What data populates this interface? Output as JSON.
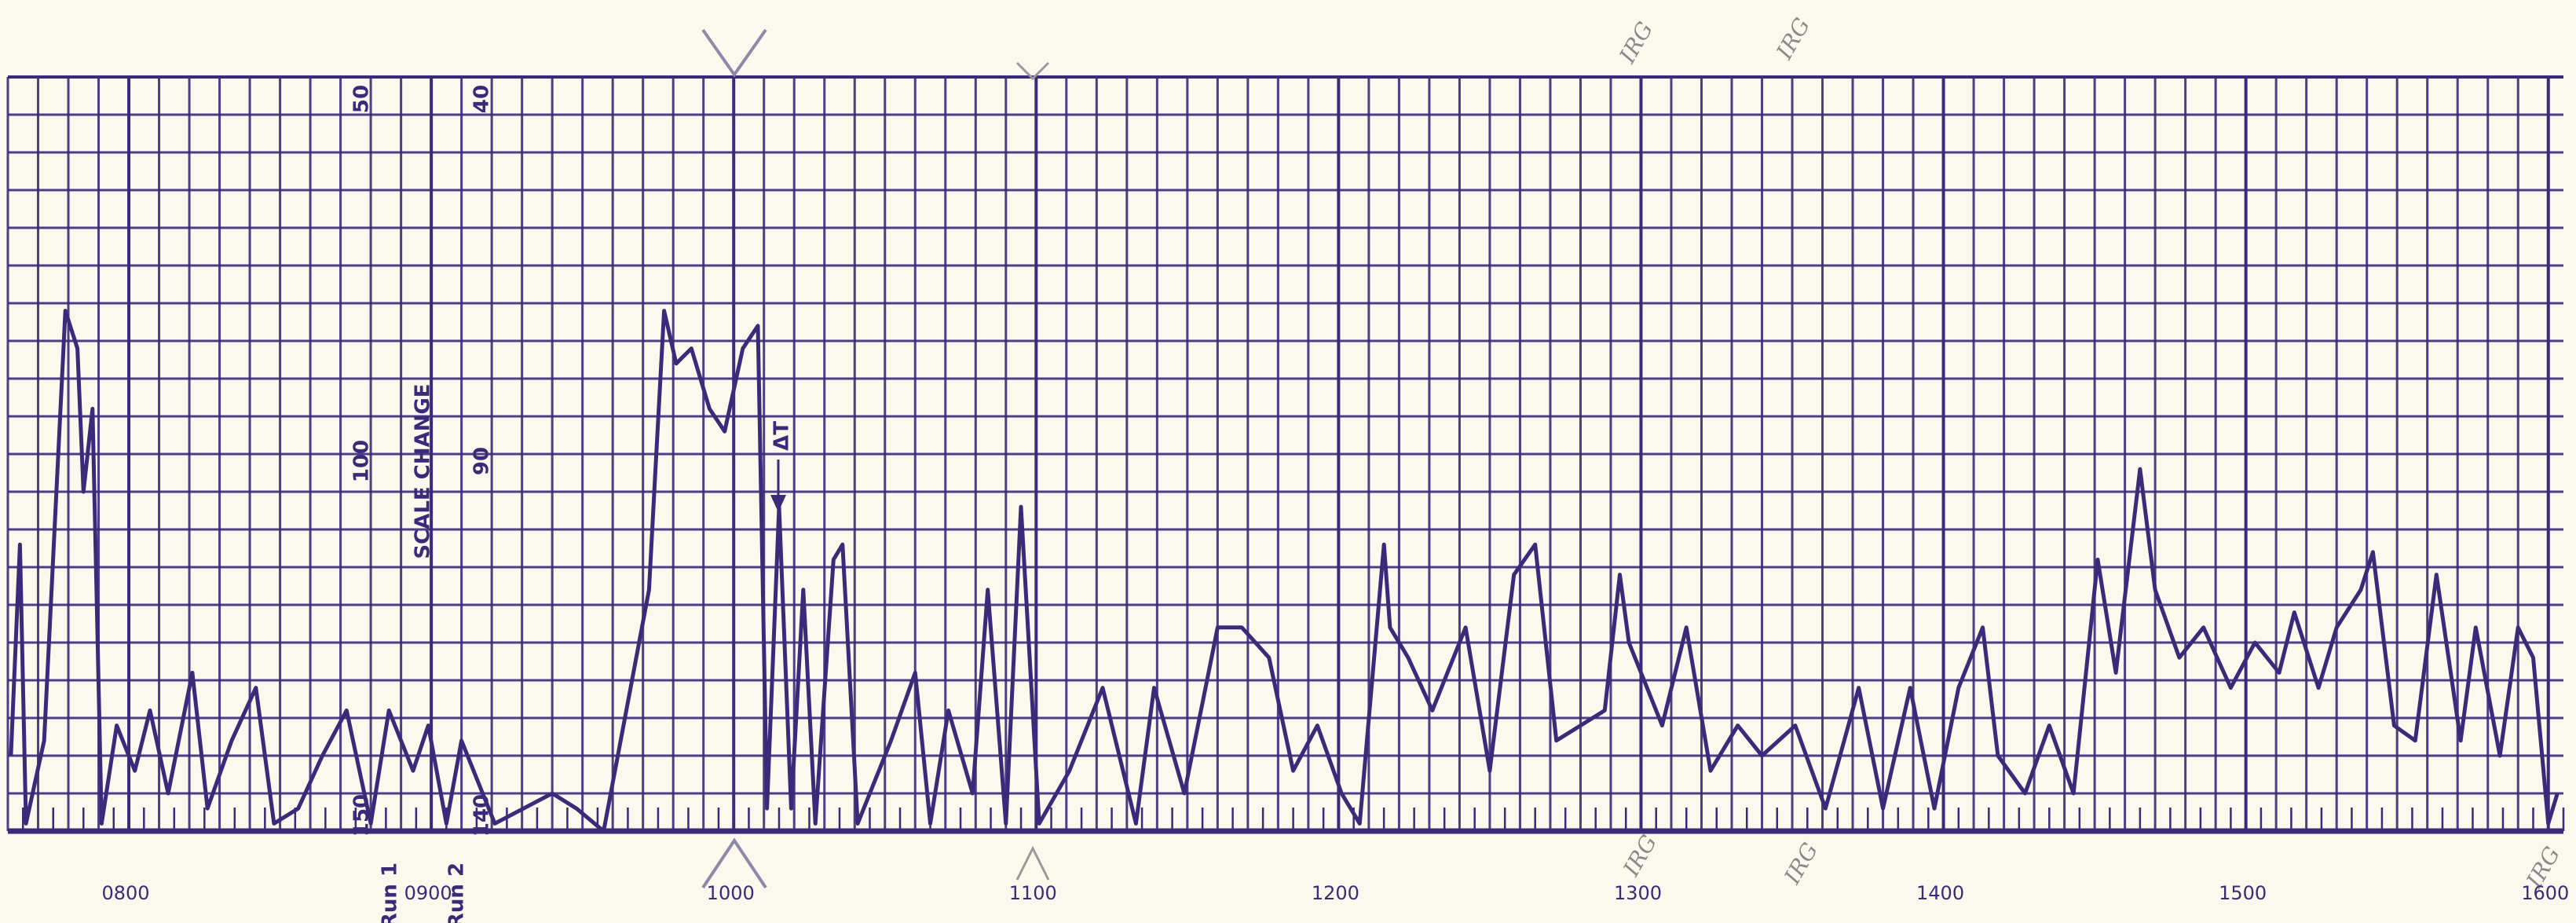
{
  "chart_data": {
    "type": "line",
    "color": "#3b2a7a",
    "grid": true,
    "xlim": [
      7.6,
      16.05
    ],
    "ylim": [
      0,
      100
    ],
    "xticks": [
      {
        "value": 8,
        "label": "0800"
      },
      {
        "value": 9,
        "label": "0900"
      },
      {
        "value": 10,
        "label": "1000"
      },
      {
        "value": 11,
        "label": "1100"
      },
      {
        "value": 12,
        "label": "1200"
      },
      {
        "value": 13,
        "label": "1300"
      },
      {
        "value": 14,
        "label": "1400"
      },
      {
        "value": 15,
        "label": "1500"
      },
      {
        "value": 16,
        "label": "1600"
      }
    ],
    "annotations": [
      "50",
      "40",
      "100",
      "90",
      "150",
      "140",
      "SCALE CHANGE",
      "Run 1",
      "Run 2",
      "ΔT",
      "IRG",
      "IRG",
      "IRG",
      "IRG",
      "IRG"
    ],
    "x": [
      7.61,
      7.64,
      7.66,
      7.72,
      7.79,
      7.83,
      7.85,
      7.88,
      7.91,
      7.96,
      8.02,
      8.07,
      8.13,
      8.21,
      8.26,
      8.34,
      8.42,
      8.48,
      8.56,
      8.64,
      8.72,
      8.8,
      8.86,
      8.94,
      8.99,
      9.05,
      9.1,
      9.21,
      9.4,
      9.48,
      9.57,
      9.72,
      9.74,
      9.77,
      9.81,
      9.86,
      9.92,
      9.97,
      10.03,
      10.08,
      10.11,
      10.15,
      10.19,
      10.23,
      10.27,
      10.33,
      10.36,
      10.41,
      10.52,
      10.6,
      10.65,
      10.71,
      10.79,
      10.84,
      10.9,
      10.95,
      11.01,
      11.11,
      11.22,
      11.33,
      11.39,
      11.49,
      11.6,
      11.68,
      11.77,
      11.85,
      11.93,
      12.01,
      12.07,
      12.15,
      12.17,
      12.23,
      12.31,
      12.42,
      12.5,
      12.58,
      12.65,
      12.72,
      12.8,
      12.88,
      12.93,
      12.96,
      13.02,
      13.07,
      13.15,
      13.23,
      13.32,
      13.4,
      13.51,
      13.61,
      13.72,
      13.8,
      13.89,
      13.97,
      14.05,
      14.13,
      14.18,
      14.27,
      14.35,
      14.43,
      14.51,
      14.57,
      14.65,
      14.7,
      14.78,
      14.86,
      14.95,
      15.03,
      15.11,
      15.16,
      15.24,
      15.3,
      15.38,
      15.42,
      15.49,
      15.56,
      15.63,
      15.71,
      15.76,
      15.84,
      15.9,
      15.95,
      16.0,
      16.03
    ],
    "values": [
      10,
      38,
      1,
      12,
      69,
      64,
      45,
      56,
      1,
      14,
      8,
      16,
      5,
      21,
      3,
      12,
      19,
      1,
      3,
      10,
      16,
      1,
      16,
      8,
      14,
      1,
      12,
      1,
      5,
      3,
      0,
      32,
      47,
      69,
      62,
      64,
      56,
      53,
      64,
      67,
      3,
      43,
      3,
      32,
      1,
      36,
      38,
      1,
      12,
      21,
      1,
      16,
      5,
      32,
      1,
      43,
      1,
      8,
      19,
      1,
      19,
      5,
      27,
      27,
      23,
      8,
      14,
      5,
      1,
      38,
      27,
      23,
      16,
      27,
      8,
      34,
      38,
      12,
      14,
      16,
      34,
      25,
      19,
      14,
      27,
      8,
      14,
      10,
      14,
      3,
      19,
      3,
      19,
      3,
      19,
      27,
      10,
      5,
      14,
      5,
      36,
      21,
      48,
      32,
      23,
      27,
      19,
      25,
      21,
      29,
      19,
      27,
      32,
      37,
      14,
      12,
      34,
      12,
      27,
      10,
      27,
      23,
      1,
      5
    ]
  }
}
